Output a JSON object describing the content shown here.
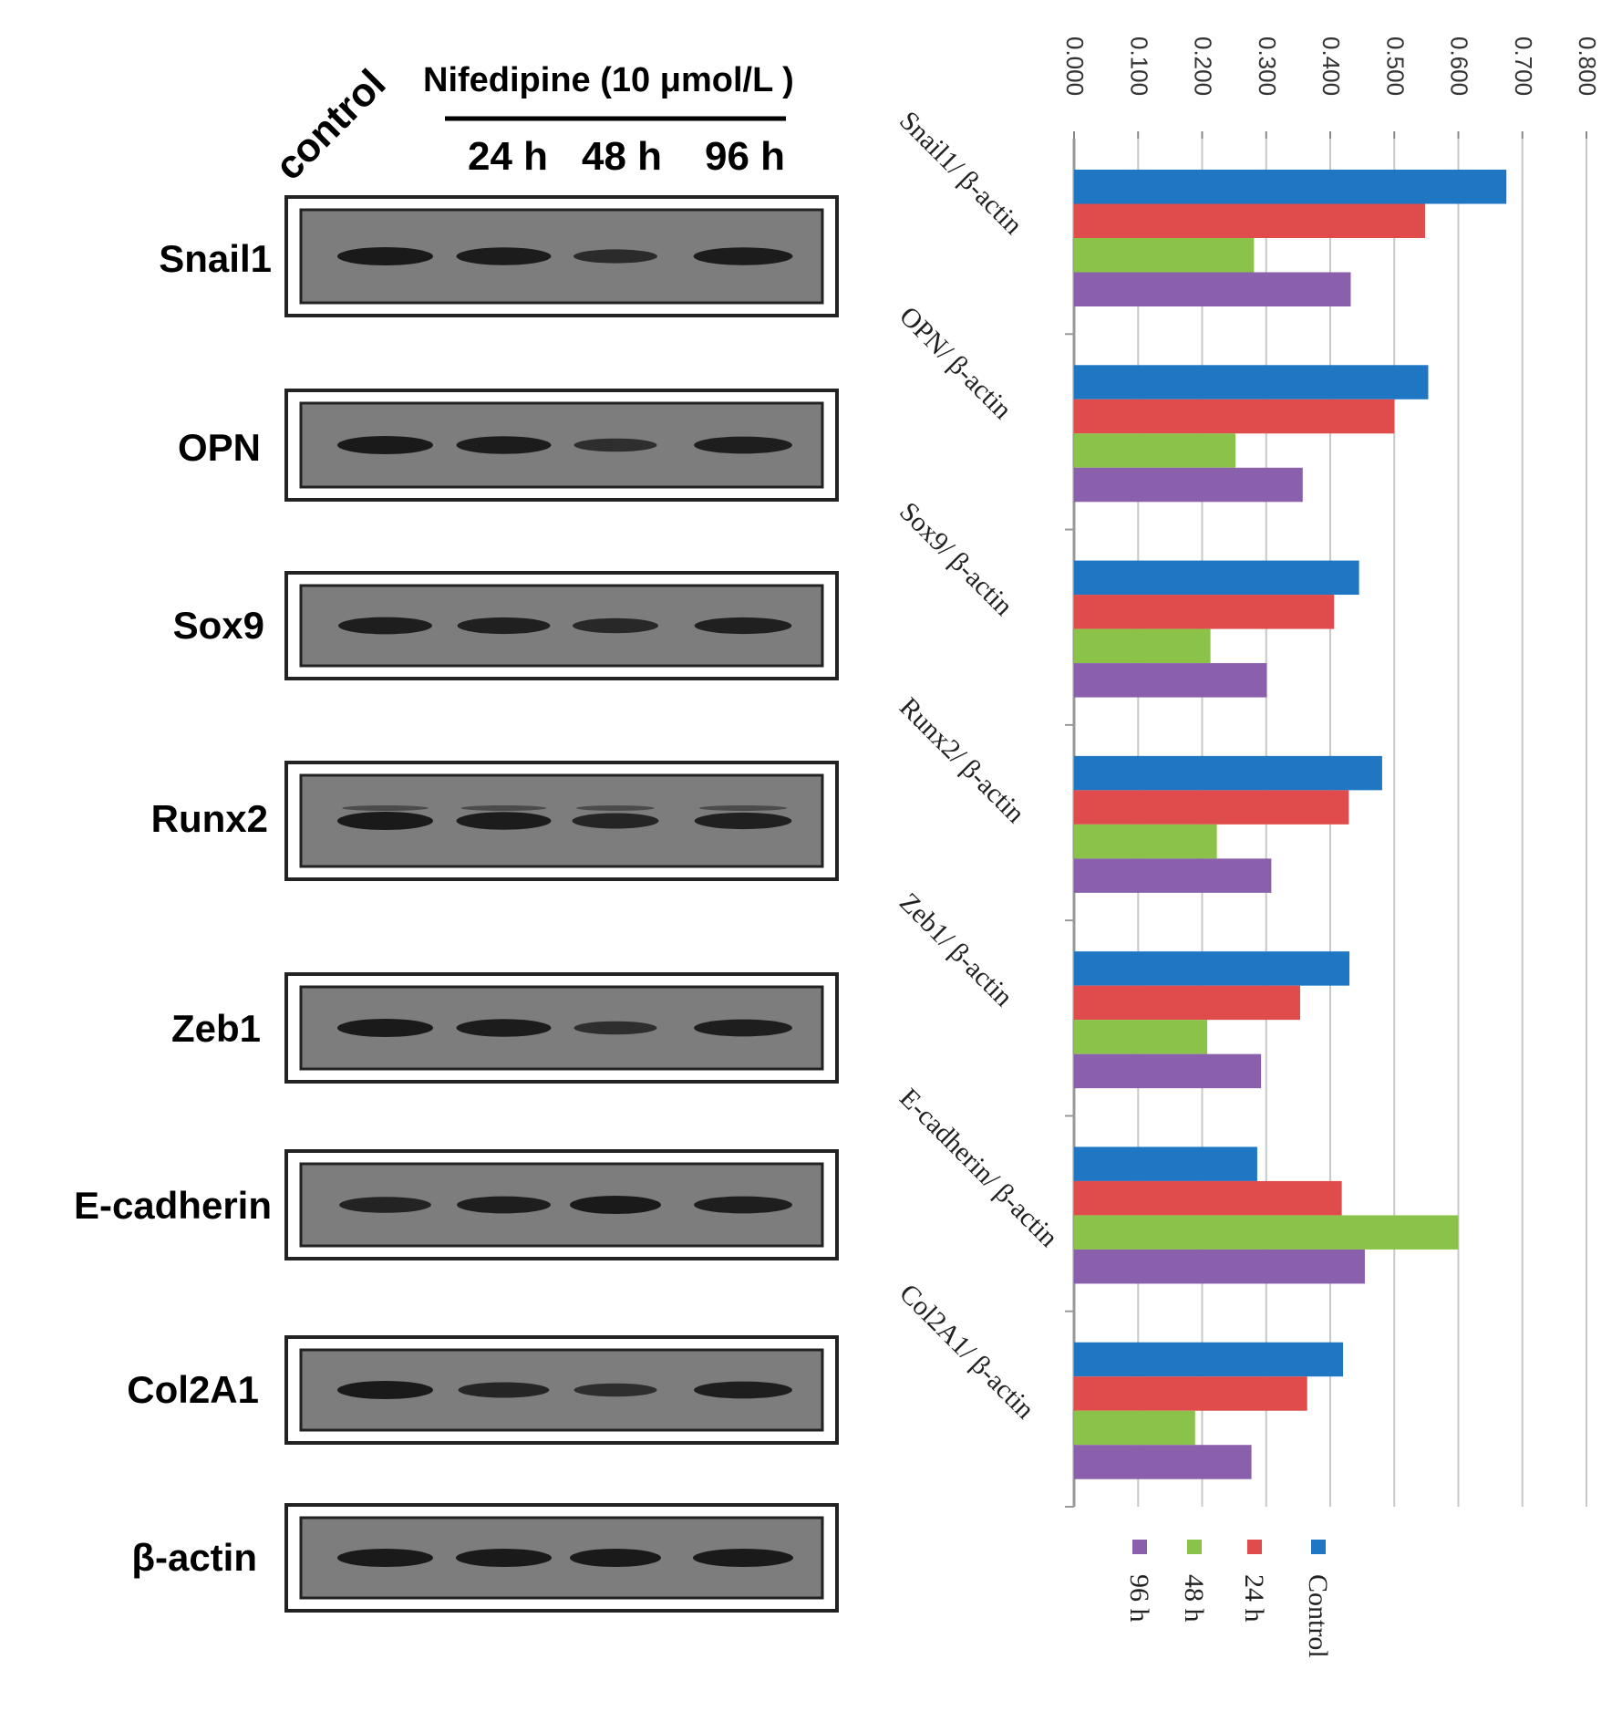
{
  "blot": {
    "header": {
      "control_label": "control",
      "treatment_label": "Nifedipine (10 μmol/L )",
      "times": [
        "24 h",
        "48 h",
        "96 h"
      ]
    },
    "proteins": [
      "Snail1",
      "OPN",
      "Sox9",
      "Runx2",
      "Zeb1",
      "E-cadherin",
      "Col2A1",
      "β-actin"
    ]
  },
  "chart_data": {
    "type": "bar",
    "orientation": "horizontal",
    "categories": [
      "Snail1/ β-actin",
      "OPN/ β-actin",
      "Sox9/ β-actin",
      "Runx2/ β-actin",
      "Zeb1/ β-actin",
      "E-cadherin/ β-actin",
      "Col2A1/ β-actin"
    ],
    "series": [
      {
        "name": "Control",
        "color": "#1f77c4",
        "values": [
          0.675,
          0.553,
          0.445,
          0.481,
          0.43,
          0.286,
          0.42
        ]
      },
      {
        "name": "24 h",
        "color": "#e04b4b",
        "values": [
          0.548,
          0.5,
          0.406,
          0.429,
          0.353,
          0.418,
          0.364
        ]
      },
      {
        "name": "48 h",
        "color": "#8bc34a",
        "values": [
          0.281,
          0.252,
          0.213,
          0.223,
          0.208,
          0.6,
          0.189
        ]
      },
      {
        "name": "96 h",
        "color": "#8a5fac",
        "values": [
          0.432,
          0.357,
          0.301,
          0.308,
          0.292,
          0.454,
          0.277
        ]
      }
    ],
    "xlim": [
      0,
      0.8
    ],
    "ticks": [
      "0.000",
      "0.100",
      "0.200",
      "0.300",
      "0.400",
      "0.500",
      "0.600",
      "0.700",
      "0.800"
    ],
    "grid": true,
    "legend_position": "bottom"
  }
}
